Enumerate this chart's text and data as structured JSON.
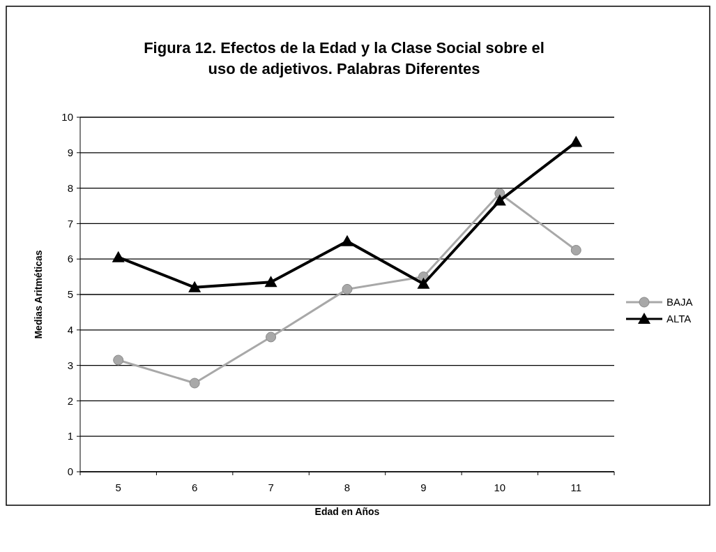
{
  "chart_data": {
    "type": "line",
    "title": "Figura 12. Efectos de la Edad y la Clase Social sobre el uso de adjetivos. Palabras Diferentes",
    "xlabel": "Edad en Años",
    "ylabel": "Medias Aritméticas",
    "categories": [
      "5",
      "6",
      "7",
      "8",
      "9",
      "10",
      "11"
    ],
    "series": [
      {
        "name": "BAJA",
        "color": "#a8a8a8",
        "marker": "circle",
        "values": [
          3.15,
          2.5,
          3.8,
          5.15,
          5.5,
          7.85,
          6.25
        ]
      },
      {
        "name": "ALTA",
        "color": "#000000",
        "marker": "triangle",
        "values": [
          6.05,
          5.2,
          5.35,
          6.5,
          5.3,
          7.65,
          9.3
        ]
      }
    ],
    "ylim": [
      0,
      10
    ],
    "yticks": [
      0,
      1,
      2,
      3,
      4,
      5,
      6,
      7,
      8,
      9,
      10
    ],
    "grid": "y",
    "legend": "right"
  }
}
